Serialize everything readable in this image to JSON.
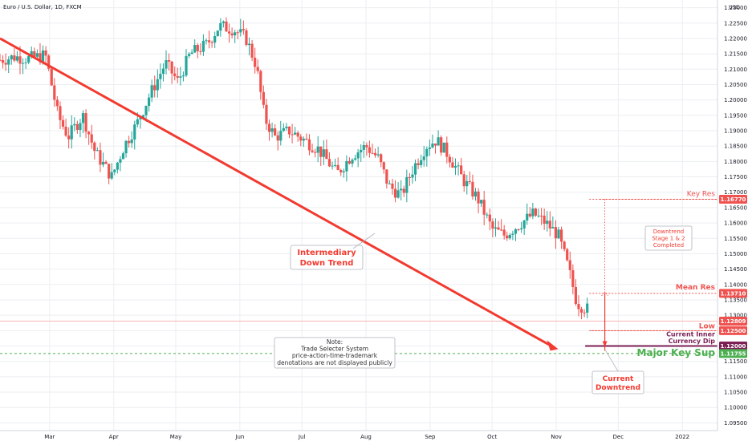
{
  "header": {
    "symbol_title": "Euro / U.S. Dollar, 1D, FXCM"
  },
  "colors": {
    "up": "#26a69a",
    "down": "#ef5350",
    "trend": "#f23a30",
    "purple": "#7b1f55",
    "green": "#4caf50",
    "grid": "#eceef1"
  },
  "chart_data": {
    "type": "candlestick",
    "title": "Euro / U.S. Dollar, 1D, FXCM",
    "xlabel": "",
    "ylabel": "",
    "y_unit_label": "USD",
    "ylim": [
      1.0925,
      1.2325
    ],
    "y_ticks": [
      "1.09500",
      "1.10000",
      "1.10500",
      "1.11000",
      "1.11500",
      "1.12000",
      "1.12500",
      "1.13000",
      "1.13500",
      "1.14000",
      "1.14500",
      "1.15000",
      "1.15500",
      "1.16000",
      "1.16500",
      "1.17000",
      "1.17500",
      "1.18000",
      "1.18500",
      "1.19000",
      "1.19500",
      "1.20000",
      "1.20500",
      "1.21000",
      "1.21500",
      "1.22000",
      "1.22500",
      "1.23000"
    ],
    "x_ticks": [
      {
        "label": "Mar",
        "day": 24
      },
      {
        "label": "Apr",
        "day": 55
      },
      {
        "label": "May",
        "day": 85
      },
      {
        "label": "Jun",
        "day": 116
      },
      {
        "label": "Jul",
        "day": 146
      },
      {
        "label": "Aug",
        "day": 177
      },
      {
        "label": "Sep",
        "day": 208
      },
      {
        "label": "Oct",
        "day": 238
      },
      {
        "label": "Nov",
        "day": 269
      },
      {
        "label": "Dec",
        "day": 299
      },
      {
        "label": "2022",
        "day": 330
      }
    ],
    "x_day_range": [
      0,
      347
    ],
    "close_path": [
      [
        0,
        1.213
      ],
      [
        7,
        1.214
      ],
      [
        14,
        1.2135
      ],
      [
        22,
        1.2145
      ],
      [
        28,
        1.195
      ],
      [
        33,
        1.188
      ],
      [
        40,
        1.195
      ],
      [
        46,
        1.183
      ],
      [
        54,
        1.175
      ],
      [
        60,
        1.185
      ],
      [
        66,
        1.192
      ],
      [
        72,
        1.201
      ],
      [
        80,
        1.212
      ],
      [
        86,
        1.206
      ],
      [
        92,
        1.215
      ],
      [
        100,
        1.218
      ],
      [
        106,
        1.224
      ],
      [
        113,
        1.223
      ],
      [
        119,
        1.22
      ],
      [
        124,
        1.211
      ],
      [
        128,
        1.194
      ],
      [
        133,
        1.188
      ],
      [
        140,
        1.19
      ],
      [
        147,
        1.187
      ],
      [
        154,
        1.184
      ],
      [
        163,
        1.176
      ],
      [
        170,
        1.182
      ],
      [
        177,
        1.185
      ],
      [
        183,
        1.181
      ],
      [
        188,
        1.172
      ],
      [
        194,
        1.169
      ],
      [
        200,
        1.178
      ],
      [
        206,
        1.185
      ],
      [
        211,
        1.187
      ],
      [
        217,
        1.182
      ],
      [
        224,
        1.174
      ],
      [
        231,
        1.168
      ],
      [
        238,
        1.158
      ],
      [
        244,
        1.156
      ],
      [
        252,
        1.16
      ],
      [
        258,
        1.163
      ],
      [
        264,
        1.16
      ],
      [
        270,
        1.156
      ],
      [
        275,
        1.145
      ],
      [
        279,
        1.134
      ],
      [
        284,
        1.132
      ]
    ],
    "series": [
      {
        "kind": "trendline",
        "label": "Intermediary Down Trend",
        "points": [
          [
            0,
            1.22
          ],
          [
            270,
            1.119
          ]
        ]
      },
      {
        "kind": "level",
        "label": "Key Res",
        "value": 1.1677,
        "price_tag": "1.16770",
        "color": "#ef5350"
      },
      {
        "kind": "level",
        "label": "Mean Res",
        "value": 1.1371,
        "price_tag": "1.13710",
        "color": "#ef5350"
      },
      {
        "kind": "level",
        "label": "Low",
        "value": 1.125,
        "price_tag": "1.12500",
        "color": "#ef5350"
      },
      {
        "kind": "level",
        "label": "Current Inner Currency Dip",
        "value": 1.12,
        "price_tag": "1.12000",
        "color": "#7b1f55"
      },
      {
        "kind": "level",
        "label": "Major Key Sup",
        "value": 1.11755,
        "price_tag": "1.11755",
        "color": "#4caf50"
      },
      {
        "kind": "level",
        "label": "",
        "value": 1.12809,
        "price_tag": "1.12809",
        "color": "#ef5350"
      }
    ],
    "annotations": {
      "intermediary": [
        "Intermediary",
        "Down Trend"
      ],
      "downtrend_stage": [
        "Downtrend",
        "Stage 1 & 2",
        "Completed"
      ],
      "current_downtrend": [
        "Current",
        "Downtrend"
      ],
      "note": [
        "Note:",
        "Trade Selecter System",
        "price-action-time-trademark",
        "denotations are not displayed publicly"
      ],
      "key_res": "Key Res",
      "mean_res": "Mean Res",
      "low": "Low",
      "inner_dip": [
        "Current Inner",
        "Currency Dip"
      ],
      "major_sup": "Major Key Sup"
    },
    "grid": true,
    "legend": "none"
  }
}
